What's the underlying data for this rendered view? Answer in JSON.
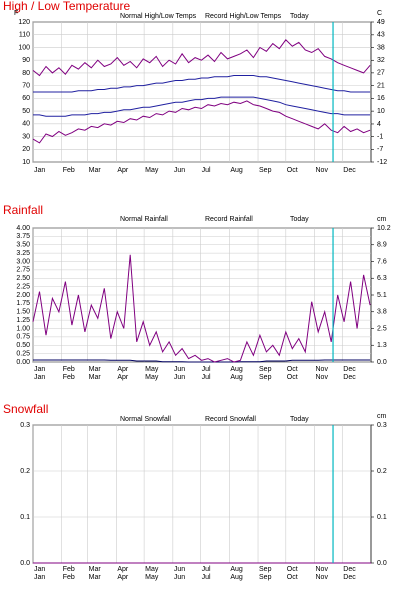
{
  "chart_data": [
    {
      "type": "line",
      "title": "High / Low Temperature",
      "ylabel": "F",
      "y2label": "C",
      "x": [
        0,
        7,
        14,
        21,
        28,
        35,
        42,
        49,
        56,
        63,
        70,
        77,
        84,
        91,
        98,
        105,
        112,
        119,
        126,
        133,
        140,
        147,
        154,
        161,
        168,
        175,
        182,
        189,
        196,
        203,
        210,
        217,
        224,
        231,
        238,
        245,
        252,
        259,
        266,
        273,
        280,
        287,
        294,
        301,
        308,
        315,
        322,
        329,
        336,
        343,
        350,
        357,
        364
      ],
      "xlim": [
        0,
        365
      ],
      "xticks": [
        {
          "value": 0,
          "label": "Jan"
        },
        {
          "value": 31,
          "label": "Feb"
        },
        {
          "value": 59,
          "label": "Mar"
        },
        {
          "value": 90,
          "label": "Apr"
        },
        {
          "value": 120,
          "label": "May"
        },
        {
          "value": 151,
          "label": "Jun"
        },
        {
          "value": 181,
          "label": "Jul"
        },
        {
          "value": 212,
          "label": "Aug"
        },
        {
          "value": 243,
          "label": "Sep"
        },
        {
          "value": 273,
          "label": "Oct"
        },
        {
          "value": 304,
          "label": "Nov"
        },
        {
          "value": 334,
          "label": "Dec"
        }
      ],
      "ylim": [
        10,
        120
      ],
      "yticks": [
        10,
        20,
        30,
        40,
        50,
        60,
        70,
        80,
        90,
        100,
        110,
        120
      ],
      "y2lim": [
        -12.2,
        48.9
      ],
      "y2ticks": [
        {
          "value": -12.2,
          "label": "-12"
        },
        {
          "value": -6.7,
          "label": "-7"
        },
        {
          "value": -1.1,
          "label": "-1"
        },
        {
          "value": 4.4,
          "label": "4"
        },
        {
          "value": 10,
          "label": "10"
        },
        {
          "value": 15.6,
          "label": "16"
        },
        {
          "value": 21.1,
          "label": "21"
        },
        {
          "value": 26.7,
          "label": "27"
        },
        {
          "value": 32.2,
          "label": "32"
        },
        {
          "value": 37.8,
          "label": "38"
        },
        {
          "value": 43.3,
          "label": "43"
        },
        {
          "value": 48.9,
          "label": "49"
        }
      ],
      "grid": true,
      "today": 324,
      "today_label": "Today",
      "today_color": "#00b8c0",
      "series": [
        {
          "name": "Normal High/Low Temps",
          "color": "#2020a0",
          "values": [
            65,
            65,
            65,
            65,
            65,
            65,
            65,
            66,
            66,
            66,
            67,
            67,
            68,
            68,
            69,
            69,
            70,
            70,
            71,
            72,
            72,
            73,
            74,
            74,
            75,
            75,
            76,
            76,
            77,
            77,
            77,
            78,
            78,
            78,
            78,
            77,
            77,
            76,
            75,
            74,
            73,
            72,
            71,
            70,
            69,
            68,
            67,
            66,
            66,
            65,
            65,
            65,
            65
          ]
        },
        {
          "name": "Normal High/Low Temps",
          "color": "#2020a0",
          "values": [
            47,
            47,
            46,
            46,
            46,
            46,
            47,
            47,
            47,
            48,
            48,
            49,
            49,
            50,
            51,
            51,
            52,
            53,
            53,
            54,
            55,
            56,
            57,
            57,
            58,
            59,
            59,
            60,
            60,
            61,
            61,
            61,
            61,
            61,
            61,
            60,
            59,
            58,
            57,
            55,
            54,
            53,
            52,
            51,
            50,
            49,
            48,
            48,
            47,
            47,
            47,
            47,
            47
          ]
        },
        {
          "name": "Record High/Low Temps",
          "color": "#800080",
          "values": [
            82,
            78,
            85,
            80,
            84,
            79,
            86,
            83,
            88,
            84,
            90,
            85,
            87,
            92,
            86,
            89,
            84,
            91,
            88,
            93,
            85,
            90,
            87,
            95,
            88,
            92,
            90,
            94,
            89,
            96,
            91,
            93,
            95,
            98,
            92,
            100,
            97,
            103,
            99,
            106,
            101,
            104,
            98,
            96,
            99,
            93,
            91,
            88,
            86,
            84,
            82,
            80,
            86
          ]
        },
        {
          "name": "Record High/Low Temps",
          "color": "#800080",
          "values": [
            28,
            25,
            32,
            30,
            34,
            31,
            33,
            36,
            35,
            38,
            37,
            40,
            39,
            42,
            41,
            44,
            43,
            46,
            45,
            48,
            47,
            50,
            49,
            52,
            51,
            53,
            52,
            55,
            54,
            56,
            55,
            57,
            56,
            58,
            55,
            54,
            52,
            50,
            49,
            46,
            44,
            42,
            40,
            38,
            36,
            40,
            35,
            33,
            38,
            34,
            36,
            33,
            35
          ]
        }
      ]
    },
    {
      "type": "line",
      "title": "Rainfall",
      "y2label": "cm",
      "x": [
        0,
        7,
        14,
        21,
        28,
        35,
        42,
        49,
        56,
        63,
        70,
        77,
        84,
        91,
        98,
        105,
        112,
        119,
        126,
        133,
        140,
        147,
        154,
        161,
        168,
        175,
        182,
        189,
        196,
        203,
        210,
        217,
        224,
        231,
        238,
        245,
        252,
        259,
        266,
        273,
        280,
        287,
        294,
        301,
        308,
        315,
        322,
        329,
        336,
        343,
        350,
        357,
        364
      ],
      "xlim": [
        0,
        365
      ],
      "xticks": [
        {
          "value": 0,
          "label": "Jan"
        },
        {
          "value": 31,
          "label": "Feb"
        },
        {
          "value": 59,
          "label": "Mar"
        },
        {
          "value": 90,
          "label": "Apr"
        },
        {
          "value": 120,
          "label": "May"
        },
        {
          "value": 151,
          "label": "Jun"
        },
        {
          "value": 181,
          "label": "Jul"
        },
        {
          "value": 212,
          "label": "Aug"
        },
        {
          "value": 243,
          "label": "Sep"
        },
        {
          "value": 273,
          "label": "Oct"
        },
        {
          "value": 304,
          "label": "Nov"
        },
        {
          "value": 334,
          "label": "Dec"
        }
      ],
      "ylim": [
        0,
        4
      ],
      "yticks": [
        {
          "value": 0,
          "label": "0.00"
        },
        {
          "value": 0.25,
          "label": "0.25"
        },
        {
          "value": 0.5,
          "label": "0.50"
        },
        {
          "value": 0.75,
          "label": "0.75"
        },
        {
          "value": 1,
          "label": "1.00"
        },
        {
          "value": 1.25,
          "label": "1.25"
        },
        {
          "value": 1.5,
          "label": "1.50"
        },
        {
          "value": 1.75,
          "label": "1.75"
        },
        {
          "value": 2,
          "label": "2.00"
        },
        {
          "value": 2.25,
          "label": "2.25"
        },
        {
          "value": 2.5,
          "label": "2.50"
        },
        {
          "value": 2.75,
          "label": "2.75"
        },
        {
          "value": 3,
          "label": "3.00"
        },
        {
          "value": 3.25,
          "label": "3.25"
        },
        {
          "value": 3.5,
          "label": "3.50"
        },
        {
          "value": 3.75,
          "label": "3.75"
        },
        {
          "value": 4,
          "label": "4.00"
        }
      ],
      "y2lim": [
        0,
        10.16
      ],
      "y2ticks": [
        {
          "value": 0,
          "label": "0.0"
        },
        {
          "value": 1.27,
          "label": "1.3"
        },
        {
          "value": 2.54,
          "label": "2.5"
        },
        {
          "value": 3.81,
          "label": "3.8"
        },
        {
          "value": 5.08,
          "label": "5.1"
        },
        {
          "value": 6.35,
          "label": "6.3"
        },
        {
          "value": 7.62,
          "label": "7.6"
        },
        {
          "value": 8.89,
          "label": "8.9"
        },
        {
          "value": 10.16,
          "label": "10.2"
        }
      ],
      "grid": true,
      "today": 324,
      "today_label": "Today",
      "today_color": "#00b8c0",
      "series": [
        {
          "name": "Normal Rainfall",
          "color": "#000060",
          "values": [
            0.06,
            0.06,
            0.06,
            0.06,
            0.06,
            0.06,
            0.06,
            0.06,
            0.06,
            0.06,
            0.06,
            0.06,
            0.05,
            0.05,
            0.05,
            0.05,
            0.03,
            0.03,
            0.03,
            0.03,
            0.01,
            0.01,
            0.01,
            0.01,
            0,
            0,
            0,
            0,
            0,
            0,
            0,
            0,
            0.01,
            0.01,
            0.01,
            0.01,
            0.03,
            0.03,
            0.03,
            0.03,
            0.05,
            0.05,
            0.05,
            0.05,
            0.05,
            0.06,
            0.06,
            0.06,
            0.06,
            0.06,
            0.06,
            0.06,
            0.06
          ]
        },
        {
          "name": "Record Rainfall",
          "color": "#800080",
          "values": [
            1.2,
            2.1,
            0.8,
            1.9,
            1.5,
            2.4,
            1.1,
            2.0,
            0.9,
            1.7,
            1.3,
            2.2,
            0.7,
            1.5,
            1.0,
            3.2,
            0.6,
            1.2,
            0.5,
            0.9,
            0.3,
            0.6,
            0.2,
            0.4,
            0.1,
            0.2,
            0.05,
            0.1,
            0,
            0.05,
            0.1,
            0,
            0.05,
            0.6,
            0.2,
            0.8,
            0.3,
            0.5,
            0.2,
            0.9,
            0.4,
            0.7,
            0.3,
            1.8,
            0.9,
            1.5,
            0.6,
            2.0,
            1.2,
            2.4,
            1.0,
            2.6,
            1.7
          ]
        }
      ]
    },
    {
      "type": "line",
      "title": "Snowfall",
      "y2label": "cm",
      "x": [
        0,
        365
      ],
      "xlim": [
        0,
        365
      ],
      "xticks": [
        {
          "value": 0,
          "label": "Jan"
        },
        {
          "value": 31,
          "label": "Feb"
        },
        {
          "value": 59,
          "label": "Mar"
        },
        {
          "value": 90,
          "label": "Apr"
        },
        {
          "value": 120,
          "label": "May"
        },
        {
          "value": 151,
          "label": "Jun"
        },
        {
          "value": 181,
          "label": "Jul"
        },
        {
          "value": 212,
          "label": "Aug"
        },
        {
          "value": 243,
          "label": "Sep"
        },
        {
          "value": 273,
          "label": "Oct"
        },
        {
          "value": 304,
          "label": "Nov"
        },
        {
          "value": 334,
          "label": "Dec"
        }
      ],
      "ylim": [
        0,
        0.3
      ],
      "yticks": [
        {
          "value": 0,
          "label": "0.0"
        },
        {
          "value": 0.1,
          "label": "0.1"
        },
        {
          "value": 0.2,
          "label": "0.2"
        },
        {
          "value": 0.3,
          "label": "0.3"
        }
      ],
      "y2lim": [
        0,
        0.3
      ],
      "y2ticks": [
        {
          "value": 0,
          "label": "0.0"
        },
        {
          "value": 0.1,
          "label": "0.1"
        },
        {
          "value": 0.2,
          "label": "0.2"
        },
        {
          "value": 0.3,
          "label": "0.3"
        }
      ],
      "grid": true,
      "today": 324,
      "today_label": "Today",
      "today_color": "#00b8c0",
      "series": [
        {
          "name": "Normal Snowfall",
          "color": "#000060",
          "values": [
            0,
            0
          ]
        },
        {
          "name": "Record Snowfall",
          "color": "#800080",
          "values": [
            0,
            0
          ]
        }
      ]
    }
  ]
}
